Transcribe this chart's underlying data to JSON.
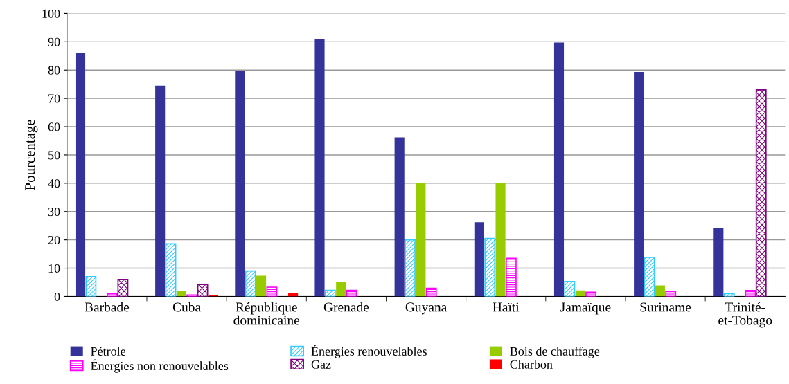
{
  "chart_data": {
    "type": "bar",
    "ylabel": "Pourcentage",
    "categories": [
      "Barbade",
      "Cuba",
      "République\ndominicaine",
      "Grenade",
      "Guyana",
      "Haïti",
      "Jamaïque",
      "Suriname",
      "Trinité-\net-Tobago"
    ],
    "series": [
      {
        "name": "Pétrole",
        "color": "#333399",
        "values": [
          86,
          74.5,
          79.7,
          91,
          56.2,
          26.2,
          89.7,
          79.3,
          24.2
        ]
      },
      {
        "name": "Énergies renouvelables",
        "color": "#33ccff",
        "values": [
          7,
          18.6,
          9,
          2.2,
          20,
          20.5,
          5.3,
          13.8,
          1
        ]
      },
      {
        "name": "Bois de chauffage",
        "color": "#99cc00",
        "values": [
          null,
          2,
          7.3,
          5,
          40,
          40,
          2.1,
          3.9,
          null
        ]
      },
      {
        "name": "Énergies non renouvelables",
        "color": "#ff00ff",
        "values": [
          1,
          0.5,
          3.3,
          2.2,
          2.9,
          13.5,
          1.5,
          1.8,
          2.1
        ]
      },
      {
        "name": "Gaz",
        "color": "#800080",
        "values": [
          6,
          4.2,
          null,
          null,
          null,
          null,
          null,
          null,
          73
        ]
      },
      {
        "name": "Charbon",
        "color": "#ff0000",
        "values": [
          null,
          0.4,
          1.1,
          null,
          null,
          null,
          null,
          null,
          null
        ]
      }
    ],
    "ylim": [
      0,
      100
    ],
    "yticks": [
      0,
      10,
      20,
      30,
      40,
      50,
      60,
      70,
      80,
      90,
      100
    ],
    "grid": "y",
    "legend": "bottom"
  }
}
